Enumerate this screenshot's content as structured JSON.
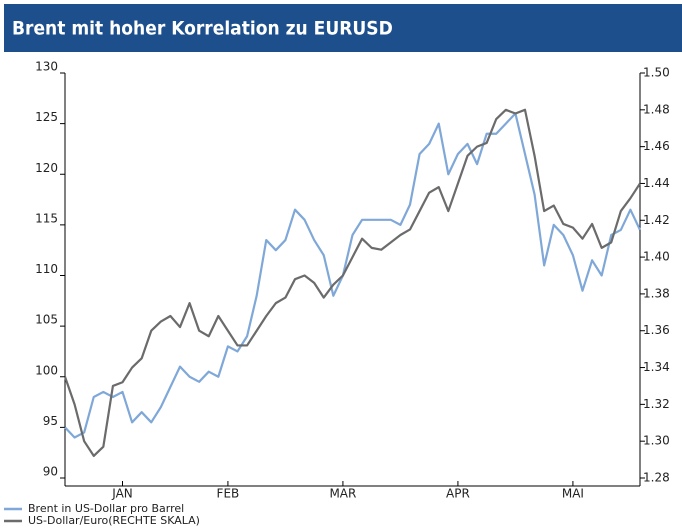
{
  "chart_data": {
    "type": "line",
    "title": "Brent mit hoher Korrelation zu EURUSD",
    "xlim": [
      0,
      60
    ],
    "xticks": [
      {
        "value": 6,
        "label": "JAN"
      },
      {
        "value": 17,
        "label": "FEB"
      },
      {
        "value": 29,
        "label": "MAR"
      },
      {
        "value": 41,
        "label": "APR"
      },
      {
        "value": 53,
        "label": "MAI"
      }
    ],
    "ylim": [
      90,
      130
    ],
    "yticks": [
      90,
      95,
      100,
      105,
      110,
      115,
      120,
      125,
      130
    ],
    "y2lim": [
      1.28,
      1.5
    ],
    "y2ticks": [
      1.28,
      {
        "value": 1.3,
        "label": "1.30"
      },
      1.32,
      1.34,
      1.36,
      1.38,
      {
        "value": 1.4,
        "label": "1.40"
      },
      1.42,
      1.44,
      1.46,
      1.48,
      {
        "value": 1.5,
        "label": "1.50"
      }
    ],
    "series": [
      {
        "name": "Brent in US-Dollar pro Barrel",
        "color": "#7fa8d8",
        "values": [
          95,
          94,
          94.5,
          98,
          98.5,
          98,
          98.5,
          95.5,
          96.5,
          95.5,
          97,
          99,
          101,
          100,
          99.5,
          100.5,
          100,
          103,
          102.5,
          104,
          108,
          113.5,
          112.5,
          113.5,
          116.5,
          115.5,
          113.5,
          112,
          108,
          110,
          114,
          115.5,
          115.5,
          115.5,
          115.5,
          115,
          117,
          122,
          123,
          125,
          120,
          122,
          123,
          121,
          124,
          124,
          125,
          126,
          122,
          118,
          111,
          115,
          114,
          112,
          108.5,
          111.5,
          110,
          114,
          114.5,
          116.5,
          114.5
        ]
      },
      {
        "name": "US-Dollar/Euro(RECHTE SKALA)",
        "color": "#6b6b6b",
        "axis": "y2",
        "values": [
          1.335,
          1.32,
          1.3,
          1.292,
          1.297,
          1.33,
          1.332,
          1.34,
          1.345,
          1.36,
          1.365,
          1.368,
          1.362,
          1.375,
          1.36,
          1.357,
          1.368,
          1.36,
          1.352,
          1.352,
          1.36,
          1.368,
          1.375,
          1.378,
          1.388,
          1.39,
          1.386,
          1.378,
          1.385,
          1.39,
          1.4,
          1.41,
          1.405,
          1.404,
          1.408,
          1.412,
          1.415,
          1.425,
          1.435,
          1.438,
          1.425,
          1.44,
          1.455,
          1.46,
          1.462,
          1.475,
          1.48,
          1.478,
          1.48,
          1.455,
          1.425,
          1.428,
          1.418,
          1.416,
          1.41,
          1.418,
          1.405,
          1.408,
          1.425,
          1.432,
          1.44
        ]
      }
    ]
  }
}
